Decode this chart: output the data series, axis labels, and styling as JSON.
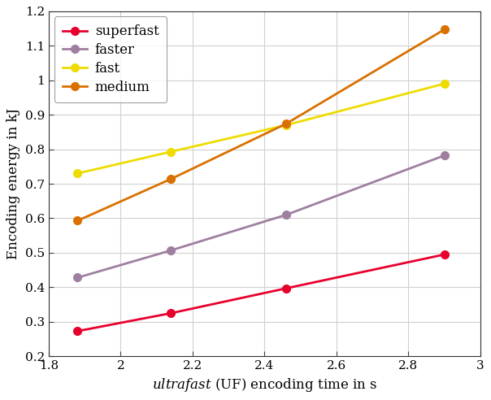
{
  "x_values": [
    1.88,
    2.14,
    2.46,
    2.9
  ],
  "series": [
    {
      "label": "superfast",
      "y": [
        0.273,
        0.325,
        0.397,
        0.495
      ],
      "color": "#e8002d",
      "marker": "o"
    },
    {
      "label": "faster",
      "y": [
        0.428,
        0.507,
        0.61,
        0.782
      ],
      "color": "#9e7fa0",
      "marker": "o"
    },
    {
      "label": "fast",
      "y": [
        0.73,
        0.793,
        0.87,
        0.99
      ],
      "color": "#eedc00",
      "marker": "o"
    },
    {
      "label": "medium",
      "y": [
        0.593,
        0.714,
        0.874,
        1.147
      ],
      "color": "#d97000",
      "marker": "o"
    }
  ],
  "xlabel": "ultrafast (UF) encoding time in s",
  "ylabel": "Encoding energy in kJ",
  "xlim": [
    1.8,
    3.0
  ],
  "ylim": [
    0.2,
    1.2
  ],
  "xticks": [
    1.8,
    2.0,
    2.2,
    2.4,
    2.6,
    2.8,
    3.0
  ],
  "yticks": [
    0.2,
    0.3,
    0.4,
    0.5,
    0.6,
    0.7,
    0.8,
    0.9,
    1.0,
    1.1,
    1.2
  ],
  "grid": true,
  "legend_loc": "upper left",
  "background_color": "#ffffff",
  "linewidth": 2.0,
  "markersize": 7
}
